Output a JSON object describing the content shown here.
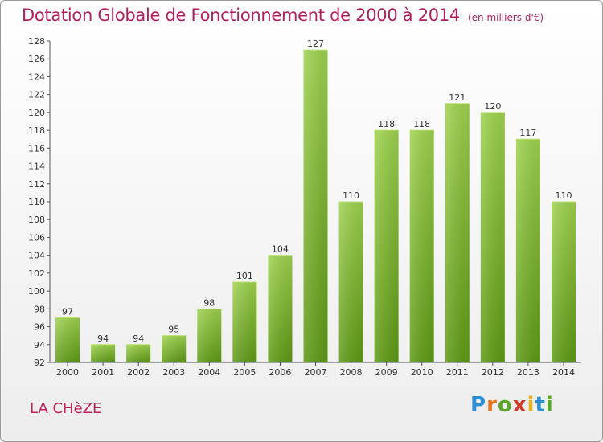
{
  "title": "Dotation Globale de Fonctionnement de 2000 à 2014",
  "unit_note": "(en milliers d'€)",
  "commune": "LA CHèZE",
  "brand": {
    "letters": [
      "P",
      "r",
      "o",
      "x",
      "i",
      "t",
      "i"
    ],
    "colors": [
      "#2a8fd6",
      "#e8731c",
      "#5aa52a",
      "#d63c2a",
      "#e8b21c",
      "#2a8fd6",
      "#5aa52a"
    ]
  },
  "colors": {
    "bar_top": "#9fd34f",
    "bar_bottom": "#5e9a14",
    "title": "#b02060",
    "commune": "#c0205c"
  },
  "chart_data": {
    "type": "bar",
    "title": "Dotation Globale de Fonctionnement de 2000 à 2014",
    "xlabel": "",
    "ylabel": "",
    "categories": [
      "2000",
      "2001",
      "2002",
      "2003",
      "2004",
      "2005",
      "2006",
      "2007",
      "2008",
      "2009",
      "2010",
      "2011",
      "2012",
      "2013",
      "2014"
    ],
    "values": [
      97,
      94,
      94,
      95,
      98,
      101,
      104,
      127,
      110,
      118,
      118,
      121,
      120,
      117,
      110
    ],
    "ylim": [
      92,
      128
    ],
    "yticks": [
      92,
      94,
      96,
      98,
      100,
      102,
      104,
      106,
      108,
      110,
      112,
      114,
      116,
      118,
      120,
      122,
      124,
      126,
      128
    ],
    "grid": false,
    "legend": "none"
  }
}
